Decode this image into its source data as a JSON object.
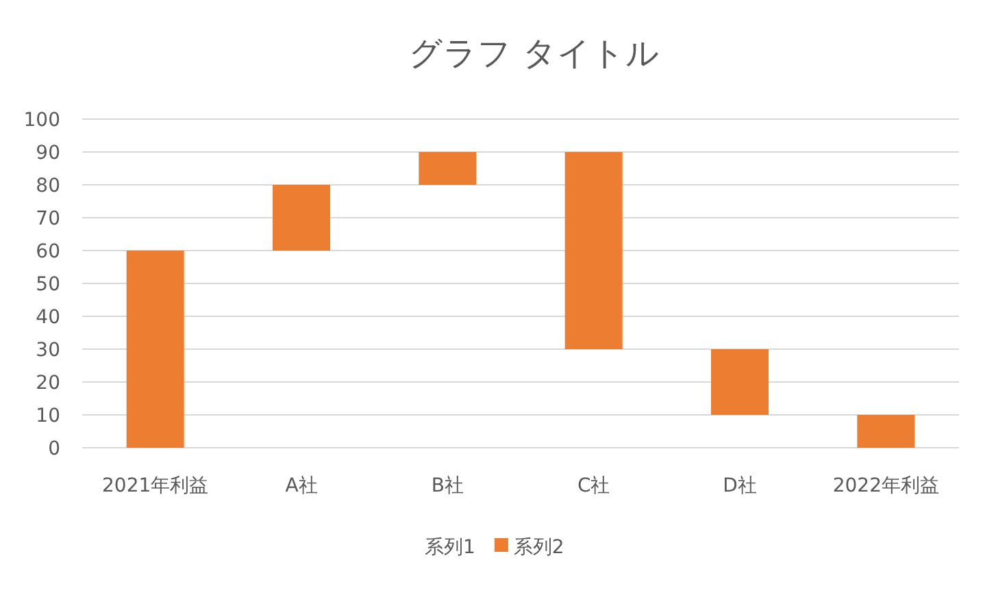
{
  "chart_data": {
    "type": "bar",
    "title": "グラフ タイトル",
    "categories": [
      "2021年利益",
      "A社",
      "B社",
      "C社",
      "D社",
      "2022年利益"
    ],
    "series": [
      {
        "name": "系列1",
        "color": null,
        "values": [
          null,
          null,
          null,
          null,
          null,
          null
        ]
      },
      {
        "name": "系列2",
        "color": "#ed7d31",
        "values": [
          60,
          20,
          10,
          60,
          20,
          10
        ],
        "base": [
          0,
          60,
          80,
          30,
          10,
          0
        ]
      }
    ],
    "ylim": [
      0,
      100
    ],
    "yticks": [
      0,
      10,
      20,
      30,
      40,
      50,
      60,
      70,
      80,
      90,
      100
    ],
    "grid": "y",
    "legend": "bottom"
  }
}
